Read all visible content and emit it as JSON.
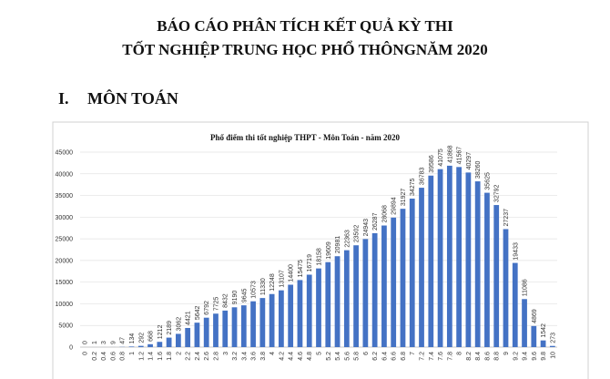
{
  "header": {
    "title_lines": [
      "BÁO CÁO PHÂN TÍCH KẾT QUẢ KỲ THI",
      "TỐT NGHIỆP TRUNG HỌC PHỔ THÔNGNĂM 2020"
    ]
  },
  "section": {
    "number": "I.",
    "title": "MÔN TOÁN"
  },
  "chart_data": {
    "type": "bar",
    "title": "Phổ điểm thi tốt nghiệp THPT - Môn Toán - năm 2020",
    "categories": [
      "0",
      "0.2",
      "0.4",
      "0.6",
      "0.8",
      "1",
      "1.2",
      "1.4",
      "1.6",
      "1.8",
      "2",
      "2.2",
      "2.4",
      "2.6",
      "2.8",
      "3",
      "3.2",
      "3.4",
      "3.6",
      "3.8",
      "4",
      "4.2",
      "4.4",
      "4.6",
      "4.8",
      "5",
      "5.2",
      "5.4",
      "5.6",
      "5.8",
      "6",
      "6.2",
      "6.4",
      "6.6",
      "6.8",
      "7",
      "7.2",
      "7.4",
      "7.6",
      "7.8",
      "8",
      "8.2",
      "8.4",
      "8.6",
      "8.8",
      "9",
      "9.2",
      "9.4",
      "9.6",
      "9.8",
      "10"
    ],
    "values": [
      0,
      1,
      3,
      9,
      47,
      134,
      292,
      668,
      1212,
      2189,
      3062,
      4421,
      5642,
      6792,
      7725,
      8432,
      9190,
      9645,
      10573,
      11330,
      12248,
      13107,
      14400,
      15475,
      16719,
      18158,
      19609,
      20981,
      22363,
      23502,
      24943,
      26287,
      28068,
      29894,
      31927,
      34275,
      36783,
      39586,
      41075,
      41868,
      41567,
      40297,
      38260,
      35625,
      32792,
      27237,
      19433,
      11086,
      4869,
      1542,
      273
    ],
    "color": "#4472c4",
    "ylim": [
      0,
      45000
    ],
    "yticks": [
      0,
      5000,
      10000,
      15000,
      20000,
      25000,
      30000,
      35000,
      40000,
      45000
    ],
    "grid": true
  }
}
